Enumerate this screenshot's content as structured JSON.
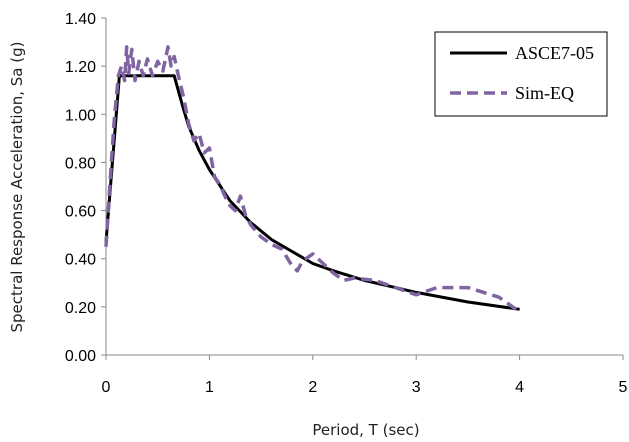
{
  "chart_data": {
    "type": "line",
    "title": "",
    "xlabel": "Period, T (sec)",
    "ylabel": "Spectral Response Acceleration, Sa (g)",
    "xlim": [
      0,
      5
    ],
    "ylim": [
      0,
      1.4
    ],
    "x_ticks": [
      "0",
      "1",
      "2",
      "3",
      "4",
      "5"
    ],
    "y_ticks": [
      "0.00",
      "0.20",
      "0.40",
      "0.60",
      "0.80",
      "1.00",
      "1.20",
      "1.40"
    ],
    "grid": false,
    "legend_position": "top-right",
    "series": [
      {
        "name": "ASCE7-05",
        "style": "solid",
        "color": "#000000",
        "x": [
          0,
          0.13,
          0.2,
          0.66,
          0.75,
          0.8,
          0.9,
          1.0,
          1.2,
          1.4,
          1.6,
          1.8,
          2.0,
          2.2,
          2.5,
          2.8,
          3.0,
          3.5,
          4.0
        ],
        "y": [
          0.47,
          1.16,
          1.16,
          1.16,
          1.02,
          0.95,
          0.85,
          0.77,
          0.64,
          0.55,
          0.48,
          0.43,
          0.38,
          0.35,
          0.31,
          0.28,
          0.26,
          0.22,
          0.19
        ]
      },
      {
        "name": "Sim-EQ",
        "style": "dashed",
        "color": "#8064A2",
        "x": [
          0,
          0.04,
          0.08,
          0.12,
          0.15,
          0.18,
          0.2,
          0.22,
          0.25,
          0.28,
          0.32,
          0.36,
          0.4,
          0.45,
          0.5,
          0.55,
          0.6,
          0.63,
          0.66,
          0.7,
          0.75,
          0.8,
          0.85,
          0.9,
          0.95,
          1.0,
          1.05,
          1.1,
          1.15,
          1.2,
          1.25,
          1.3,
          1.35,
          1.4,
          1.5,
          1.6,
          1.7,
          1.8,
          1.85,
          1.9,
          2.0,
          2.1,
          2.2,
          2.3,
          2.4,
          2.6,
          2.8,
          3.0,
          3.2,
          3.5,
          3.8,
          4.0
        ],
        "y": [
          0.45,
          0.72,
          0.98,
          1.16,
          1.2,
          1.14,
          1.28,
          1.17,
          1.27,
          1.14,
          1.22,
          1.16,
          1.23,
          1.16,
          1.22,
          1.18,
          1.28,
          1.2,
          1.24,
          1.16,
          1.07,
          0.96,
          0.89,
          0.92,
          0.84,
          0.86,
          0.74,
          0.71,
          0.66,
          0.62,
          0.6,
          0.66,
          0.58,
          0.54,
          0.49,
          0.46,
          0.44,
          0.37,
          0.35,
          0.39,
          0.42,
          0.38,
          0.34,
          0.31,
          0.32,
          0.31,
          0.28,
          0.25,
          0.28,
          0.28,
          0.24,
          0.18
        ]
      }
    ]
  }
}
